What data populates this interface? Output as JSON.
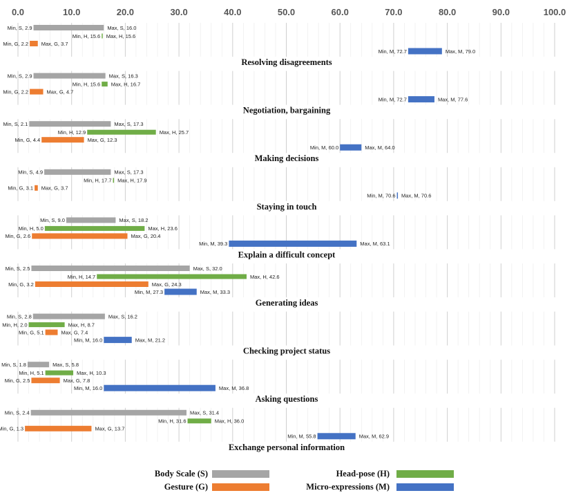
{
  "chart_data": {
    "type": "range-bar",
    "xlim": [
      0,
      100
    ],
    "x_ticks": [
      "0.0",
      "10.0",
      "20.0",
      "30.0",
      "40.0",
      "50.0",
      "60.0",
      "70.0",
      "80.0",
      "90.0",
      "100.0"
    ],
    "series": [
      {
        "key": "S",
        "name": "Body Scale  (S)",
        "color": "#a5a5a5"
      },
      {
        "key": "H",
        "name": "Head-pose (H)",
        "color": "#70ad47"
      },
      {
        "key": "G",
        "name": "Gesture  (G)",
        "color": "#ed7d31"
      },
      {
        "key": "M",
        "name": "Micro-expressions  (M)",
        "color": "#4472c4"
      }
    ],
    "groups": [
      {
        "title": "Resolving disagreements",
        "bars": [
          {
            "series": "S",
            "min": 2.9,
            "max": 16.0,
            "min_label": "Min, S, 2.9",
            "max_label": "Max, S, 16.0"
          },
          {
            "series": "H",
            "min": 15.6,
            "max": 15.6,
            "min_label": "Min, H, 15.6",
            "max_label": "Max, H, 15.6"
          },
          {
            "series": "G",
            "min": 2.2,
            "max": 3.7,
            "min_label": "Min, G, 2.2",
            "max_label": "Max, G, 3.7"
          },
          {
            "series": "M",
            "min": 72.7,
            "max": 79.0,
            "min_label": "Min, M, 72.7",
            "max_label": "Max, M, 79.0"
          }
        ]
      },
      {
        "title": "Negotiation, bargaining",
        "bars": [
          {
            "series": "S",
            "min": 2.9,
            "max": 16.3,
            "min_label": "Min, S, 2.9",
            "max_label": "Max, S, 16.3"
          },
          {
            "series": "H",
            "min": 15.6,
            "max": 16.7,
            "min_label": "Min, H, 15.6",
            "max_label": "Max, H, 16.7"
          },
          {
            "series": "G",
            "min": 2.2,
            "max": 4.7,
            "min_label": "Min, G, 2.2",
            "max_label": "Max, G, 4.7"
          },
          {
            "series": "M",
            "min": 72.7,
            "max": 77.6,
            "min_label": "Min, M, 72.7",
            "max_label": "Max, M, 77.6"
          }
        ]
      },
      {
        "title": "Making decisions",
        "bars": [
          {
            "series": "S",
            "min": 2.1,
            "max": 17.3,
            "min_label": "Min, S, 2.1",
            "max_label": "Max, S, 17.3"
          },
          {
            "series": "H",
            "min": 12.9,
            "max": 25.7,
            "min_label": "Min, H, 12.9",
            "max_label": "Max, H, 25.7"
          },
          {
            "series": "G",
            "min": 4.4,
            "max": 12.3,
            "min_label": "Min, G, 4.4",
            "max_label": "Max, G, 12.3"
          },
          {
            "series": "M",
            "min": 60.0,
            "max": 64.0,
            "min_label": "Min, M, 60.0",
            "max_label": "Max, M, 64.0"
          }
        ]
      },
      {
        "title": "Staying in touch",
        "bars": [
          {
            "series": "S",
            "min": 4.9,
            "max": 17.3,
            "min_label": "Min, S, 4.9",
            "max_label": "Max, S, 17.3"
          },
          {
            "series": "H",
            "min": 17.7,
            "max": 17.9,
            "min_label": "Min, H, 17.7",
            "max_label": "Max, H, 17.9"
          },
          {
            "series": "G",
            "min": 3.1,
            "max": 3.7,
            "min_label": "Min, G, 3.1",
            "max_label": "Max, G, 3.7"
          },
          {
            "series": "M",
            "min": 70.6,
            "max": 70.6,
            "min_label": "Min, M, 70.6",
            "max_label": "Max, M, 70.6"
          }
        ]
      },
      {
        "title": "Explain a difficult concept",
        "bars": [
          {
            "series": "S",
            "min": 9.0,
            "max": 18.2,
            "min_label": "Min, S, 9.0",
            "max_label": "Max, S, 18.2"
          },
          {
            "series": "H",
            "min": 5.0,
            "max": 23.6,
            "min_label": "Min, H, 5.0",
            "max_label": "Max, H, 23.6"
          },
          {
            "series": "G",
            "min": 2.6,
            "max": 20.4,
            "min_label": "Min, G, 2.6",
            "max_label": "Max, G, 20.4"
          },
          {
            "series": "M",
            "min": 39.3,
            "max": 63.1,
            "min_label": "Min, M, 39.3",
            "max_label": "Max, M, 63.1"
          }
        ]
      },
      {
        "title": "Generating ideas",
        "bars": [
          {
            "series": "S",
            "min": 2.5,
            "max": 32.0,
            "min_label": "Min, S, 2.5",
            "max_label": "Max, S, 32.0"
          },
          {
            "series": "H",
            "min": 14.7,
            "max": 42.6,
            "min_label": "Min, H, 14.7",
            "max_label": "Max, H, 42.6"
          },
          {
            "series": "G",
            "min": 3.2,
            "max": 24.3,
            "min_label": "Min, G, 3.2",
            "max_label": "Max, G, 24.3"
          },
          {
            "series": "M",
            "min": 27.3,
            "max": 33.3,
            "min_label": "Min, M, 27.3",
            "max_label": "Max, M, 33.3"
          }
        ]
      },
      {
        "title": "Checking project status",
        "bars": [
          {
            "series": "S",
            "min": 2.8,
            "max": 16.2,
            "min_label": "Min, S, 2.8",
            "max_label": "Max, S, 16.2"
          },
          {
            "series": "H",
            "min": 2.0,
            "max": 8.7,
            "min_label": "Min, H, 2.0",
            "max_label": "Max, H, 8.7"
          },
          {
            "series": "G",
            "min": 5.1,
            "max": 7.4,
            "min_label": "Min, G, 5.1",
            "max_label": "Max, G, 7.4"
          },
          {
            "series": "M",
            "min": 16.0,
            "max": 21.2,
            "min_label": "Min, M, 16.0",
            "max_label": "Max, M, 21.2"
          }
        ]
      },
      {
        "title": "Asking questions",
        "bars": [
          {
            "series": "S",
            "min": 1.8,
            "max": 5.8,
            "min_label": "Min, S, 1.8",
            "max_label": "Max, S, 5.8"
          },
          {
            "series": "H",
            "min": 5.1,
            "max": 10.3,
            "min_label": "Min, H, 5.1",
            "max_label": "Max, H, 10.3"
          },
          {
            "series": "G",
            "min": 2.5,
            "max": 7.8,
            "min_label": "Min, G, 2.5",
            "max_label": "Max, G, 7.8"
          },
          {
            "series": "M",
            "min": 16.0,
            "max": 36.8,
            "min_label": "Min, M, 16.0",
            "max_label": "Max, M, 36.8"
          }
        ]
      },
      {
        "title": "Exchange personal information",
        "bars": [
          {
            "series": "S",
            "min": 2.4,
            "max": 31.4,
            "min_label": "Min, S, 2.4",
            "max_label": "Max, S, 31.4"
          },
          {
            "series": "H",
            "min": 31.6,
            "max": 36.0,
            "min_label": "Min, H, 31.6",
            "max_label": "Max, H, 36.0"
          },
          {
            "series": "G",
            "min": 1.3,
            "max": 13.7,
            "min_label": "Min, G, 1.3",
            "max_label": "Max, G, 13.7"
          },
          {
            "series": "M",
            "min": 55.8,
            "max": 62.9,
            "min_label": "Min, M, 55.8",
            "max_label": "Max, M, 62.9"
          }
        ]
      }
    ]
  }
}
